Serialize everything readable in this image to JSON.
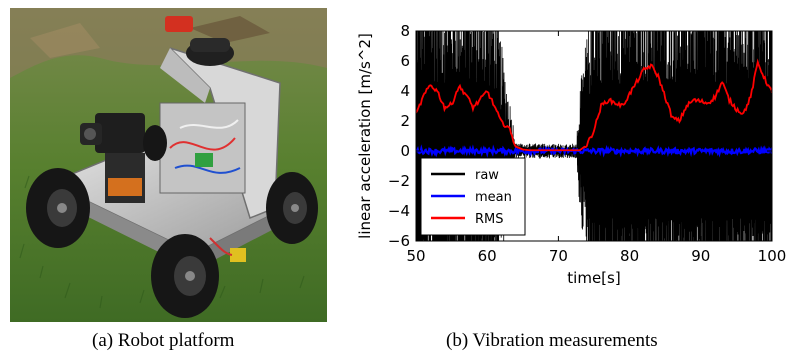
{
  "captions": {
    "left": "(a) Robot platform",
    "right": "(b) Vibration measurements"
  },
  "photo": {
    "subject": "four-wheeled robot platform on grass",
    "colors": {
      "grass": "#4f7a2c",
      "aluminum": "#c9c9c9",
      "wheel": "#1a1a1a",
      "accent_red": "#d33020"
    }
  },
  "chart_data": {
    "type": "line",
    "xlabel": "time[s]",
    "ylabel": "linear acceleration [m/s^2]",
    "xlim": [
      50,
      100
    ],
    "ylim": [
      -6,
      8
    ],
    "xticks": [
      50,
      60,
      70,
      80,
      90,
      100
    ],
    "yticks": [
      -6,
      -4,
      -2,
      0,
      2,
      4,
      6,
      8
    ],
    "legend_position": "lower-left",
    "series": [
      {
        "name": "raw",
        "color": "#000000",
        "envelope": [
          [
            50,
            -6,
            8
          ],
          [
            52,
            -6,
            8
          ],
          [
            55,
            -6,
            8
          ],
          [
            58,
            -6,
            8
          ],
          [
            61,
            -5.5,
            7
          ],
          [
            62,
            -3.5,
            4.5
          ],
          [
            63,
            -1.5,
            2.5
          ],
          [
            64,
            -0.4,
            0.5
          ],
          [
            72.5,
            -0.4,
            0.5
          ],
          [
            73,
            -1.5,
            2.5
          ],
          [
            74,
            -4,
            5
          ],
          [
            75,
            -6,
            8
          ],
          [
            100,
            -6,
            8
          ]
        ]
      },
      {
        "name": "mean",
        "color": "#0000ff",
        "x": [
          50,
          60,
          70,
          80,
          90,
          100
        ],
        "y": [
          0,
          0,
          0,
          0,
          0,
          0
        ]
      },
      {
        "name": "RMS",
        "color": "#ff0000",
        "x": [
          50,
          51,
          52,
          53,
          54,
          55,
          56,
          57,
          58,
          59,
          60,
          61,
          62,
          63,
          64,
          65,
          66,
          67,
          68,
          69,
          70,
          71,
          72,
          73,
          74,
          75,
          76,
          77,
          78,
          79,
          80,
          81,
          82,
          83,
          84,
          85,
          86,
          87,
          88,
          89,
          90,
          91,
          92,
          93,
          94,
          95,
          96,
          97,
          98,
          99,
          100
        ],
        "y": [
          2.4,
          3.6,
          4.4,
          4.0,
          2.9,
          3.1,
          4.3,
          3.8,
          2.9,
          3.4,
          4.0,
          3.0,
          1.9,
          1.6,
          0.3,
          0.1,
          0.05,
          0.05,
          0.05,
          0.05,
          0.05,
          0.05,
          0.05,
          0.05,
          0.4,
          1.4,
          3.0,
          3.4,
          3.2,
          3.0,
          3.8,
          4.6,
          5.4,
          5.7,
          5.0,
          3.6,
          2.2,
          2.0,
          3.0,
          3.4,
          3.3,
          3.2,
          3.6,
          4.6,
          3.4,
          2.8,
          2.5,
          3.6,
          5.9,
          4.8,
          3.9
        ]
      }
    ]
  }
}
